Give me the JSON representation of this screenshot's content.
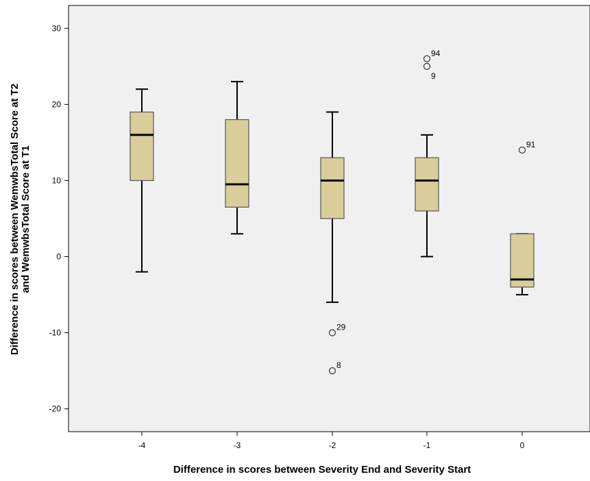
{
  "chart_data": {
    "type": "boxplot",
    "xlabel": "Difference in scores between Severity End and Severity Start",
    "ylabel_lines": [
      "Difference in scores between WemwbsTotal Score at T2",
      "and WemwbsTotal Score at T1"
    ],
    "ylim": [
      -23,
      33
    ],
    "yticks": [
      -20,
      -10,
      0,
      10,
      20,
      30
    ],
    "categories": [
      "-4",
      "-3",
      "-2",
      "-1",
      "0"
    ],
    "boxes": [
      {
        "category": "-4",
        "whisker_low": -2,
        "q1": 10,
        "median": 16,
        "q3": 19,
        "whisker_high": 22,
        "outliers": []
      },
      {
        "category": "-3",
        "whisker_low": 3,
        "q1": 6.5,
        "median": 9.5,
        "q3": 18,
        "whisker_high": 23,
        "outliers": []
      },
      {
        "category": "-2",
        "whisker_low": -6,
        "q1": 5,
        "median": 10,
        "q3": 13,
        "whisker_high": 19,
        "outliers": [
          {
            "value": -10,
            "label": "29"
          },
          {
            "value": -15,
            "label": "8"
          }
        ]
      },
      {
        "category": "-1",
        "whisker_low": 0,
        "q1": 6,
        "median": 10,
        "q3": 13,
        "whisker_high": 16,
        "outliers": [
          {
            "value": 26,
            "label": "94"
          },
          {
            "value": 25,
            "label": "9"
          }
        ]
      },
      {
        "category": "0",
        "whisker_low": -5,
        "q1": -4,
        "median": -3,
        "q3": 3,
        "whisker_high": 3,
        "outliers": [
          {
            "value": 14,
            "label": "91"
          }
        ]
      }
    ],
    "grid": false,
    "colors": {
      "plot_background": "#f0f0f0",
      "box_fill": "#d9cd99",
      "box_stroke": "#555555",
      "line": "#000000"
    }
  }
}
